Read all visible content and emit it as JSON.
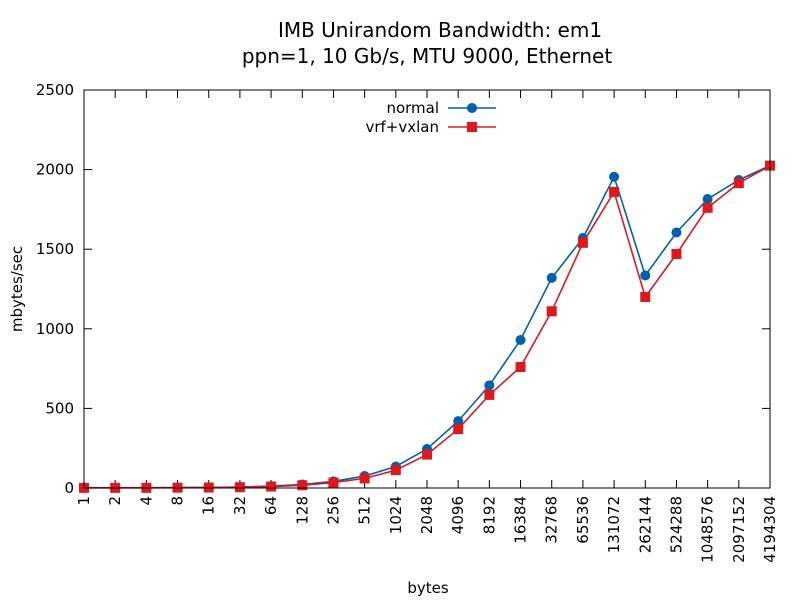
{
  "chart_data": {
    "type": "line",
    "title": "IMB Unirandom Bandwidth: em1",
    "subtitle": "ppn=1, 10 Gb/s, MTU 9000, Ethernet",
    "xlabel": "bytes",
    "ylabel": "mbytes/sec",
    "ylim": [
      0,
      2500
    ],
    "yticks": [
      "0",
      "500",
      "1000",
      "1500",
      "2000",
      "2500"
    ],
    "categories": [
      "1",
      "2",
      "4",
      "8",
      "16",
      "32",
      "64",
      "128",
      "256",
      "512",
      "1024",
      "2048",
      "4096",
      "8192",
      "16384",
      "32768",
      "65536",
      "131072",
      "262144",
      "524288",
      "1048576",
      "2097152",
      "4194304"
    ],
    "grid": false,
    "legend_position": "top-center",
    "series": [
      {
        "name": "normal",
        "color": "#0060ad",
        "marker": "circle",
        "values": [
          2,
          2,
          2,
          3,
          4,
          6,
          12,
          22,
          42,
          75,
          135,
          245,
          420,
          645,
          930,
          1320,
          1570,
          1955,
          1335,
          1605,
          1815,
          1935,
          2025
        ]
      },
      {
        "name": "vrf+vxlan",
        "color": "#dd181f",
        "marker": "square",
        "values": [
          1,
          1,
          1,
          2,
          3,
          5,
          9,
          17,
          34,
          60,
          112,
          210,
          370,
          585,
          760,
          1110,
          1540,
          1860,
          1200,
          1470,
          1760,
          1915,
          2025
        ]
      }
    ]
  }
}
